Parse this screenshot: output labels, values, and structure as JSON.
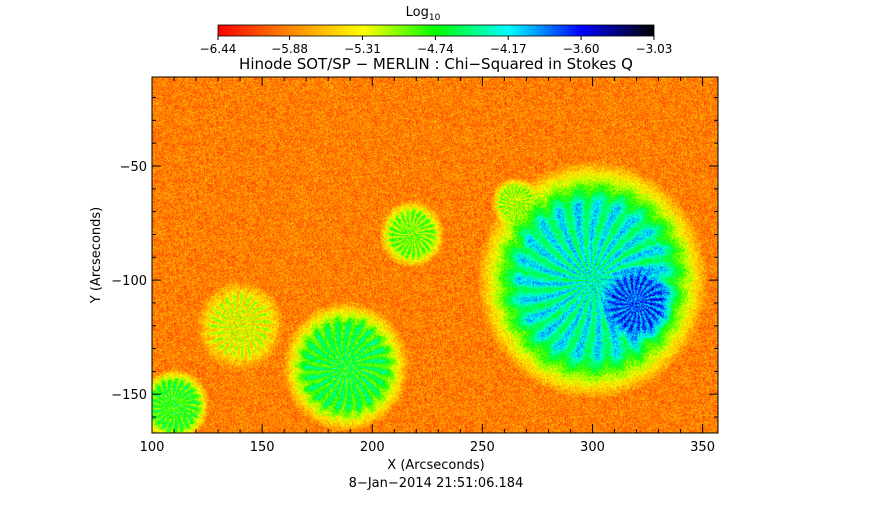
{
  "chart_data": {
    "type": "heatmap",
    "title": "Hinode SOT/SP − MERLIN : Chi−Squared in Stokes Q",
    "xlabel": "X (Arcseconds)",
    "ylabel": "Y (Arcseconds)",
    "timestamp": "8−Jan−2014 21:51:06.184",
    "xlim": [
      100,
      357
    ],
    "ylim": [
      -167,
      -11
    ],
    "x_ticks": [
      100,
      150,
      200,
      250,
      300,
      350
    ],
    "x_tick_labels": [
      "100",
      "150",
      "200",
      "250",
      "300",
      "350"
    ],
    "y_ticks": [
      -50,
      -100,
      -150
    ],
    "y_tick_labels": [
      "−50",
      "−100",
      "−150"
    ],
    "colorbar": {
      "title_base": "Log",
      "title_sub": "10",
      "range": [
        -6.44,
        -3.03
      ],
      "ticks": [
        -6.44,
        -5.88,
        -5.31,
        -4.74,
        -4.17,
        -3.6,
        -3.03
      ],
      "tick_labels": [
        "−6.44",
        "−5.88",
        "−5.31",
        "−4.74",
        "−4.17",
        "−3.60",
        "−3.03"
      ],
      "colors": [
        "#ff0000",
        "#ff8800",
        "#ffff00",
        "#00ff00",
        "#00ffff",
        "#0000ff",
        "#000000"
      ]
    },
    "background_level": -5.9,
    "regions": [
      {
        "name": "large sunspot",
        "center": [
          300,
          -100
        ],
        "radius": 42,
        "level": -4.3
      },
      {
        "name": "sunspot umbra core",
        "center": [
          320,
          -110
        ],
        "radius": 14,
        "level": -3.8
      },
      {
        "name": "small sunspot",
        "center": [
          188,
          -138
        ],
        "radius": 23,
        "level": -4.7
      },
      {
        "name": "pore west",
        "center": [
          110,
          -155
        ],
        "radius": 13,
        "level": -4.8
      },
      {
        "name": "plage arc",
        "center": [
          218,
          -80
        ],
        "radius": 12,
        "level": -5.0
      },
      {
        "name": "plage patch",
        "center": [
          265,
          -66
        ],
        "radius": 9,
        "level": -5.1
      },
      {
        "name": "plage lower left",
        "center": [
          140,
          -120
        ],
        "radius": 16,
        "level": -5.3
      }
    ]
  }
}
